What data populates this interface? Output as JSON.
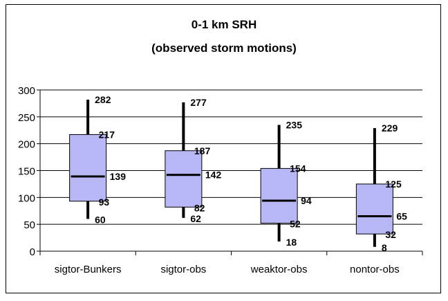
{
  "chart_data": {
    "type": "boxplot",
    "title": "0-1 km SRH",
    "subtitle": "(observed storm motions)",
    "xlabel": "",
    "ylabel": "",
    "ylim": [
      0,
      300
    ],
    "yticks": [
      0,
      50,
      100,
      150,
      200,
      250,
      300
    ],
    "grid": true,
    "legend": "none",
    "box_color": "#b7b7f5",
    "categories": [
      "sigtor-Bunkers",
      "sigtor-obs",
      "weaktor-obs",
      "nontor-obs"
    ],
    "boxes": [
      {
        "category": "sigtor-Bunkers",
        "min": 60,
        "q1": 93,
        "median": 139,
        "q3": 217,
        "max": 282,
        "labels": {
          "max": "282",
          "q3": "217",
          "median": "139",
          "q1": "93",
          "min": "60"
        }
      },
      {
        "category": "sigtor-obs",
        "min": 62,
        "q1": 82,
        "median": 142,
        "q3": 187,
        "max": 277,
        "labels": {
          "max": "277",
          "q3": "187",
          "median": "142",
          "q1": "82",
          "min": "62"
        }
      },
      {
        "category": "weaktor-obs",
        "min": 18,
        "q1": 52,
        "median": 94,
        "q3": 154,
        "max": 235,
        "labels": {
          "max": "235",
          "q3": "154",
          "median": "94",
          "q1": "52",
          "min": "18"
        }
      },
      {
        "category": "nontor-obs",
        "min": 8,
        "q1": 32,
        "median": 65,
        "q3": 125,
        "max": 229,
        "labels": {
          "max": "229",
          "q3": "125",
          "median": "65",
          "q1": "32",
          "min": "8"
        }
      }
    ]
  }
}
